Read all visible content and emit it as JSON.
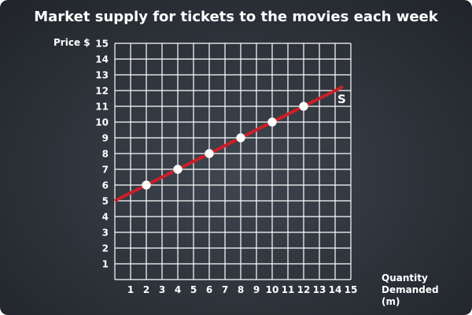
{
  "chart_data": {
    "type": "line",
    "title": "Market supply for tickets to the movies each week",
    "ylabel": "Price $",
    "xlabel_lines": [
      "Quantity",
      "Demanded",
      "(m)"
    ],
    "xlim": [
      0,
      15
    ],
    "ylim": [
      0,
      15
    ],
    "xticks": [
      1,
      2,
      3,
      4,
      5,
      6,
      7,
      8,
      9,
      10,
      11,
      12,
      13,
      14,
      15
    ],
    "yticks": [
      1,
      2,
      3,
      4,
      5,
      6,
      7,
      8,
      9,
      10,
      11,
      12,
      13,
      14,
      15
    ],
    "grid": true,
    "series": [
      {
        "name": "S",
        "color": "#cc1f27",
        "line": {
          "x": [
            0,
            14.5
          ],
          "y": [
            5,
            12.25
          ]
        },
        "points": {
          "x": [
            2,
            4,
            6,
            8,
            10,
            12
          ],
          "y": [
            6,
            7,
            8,
            9,
            10,
            11
          ]
        }
      }
    ]
  }
}
